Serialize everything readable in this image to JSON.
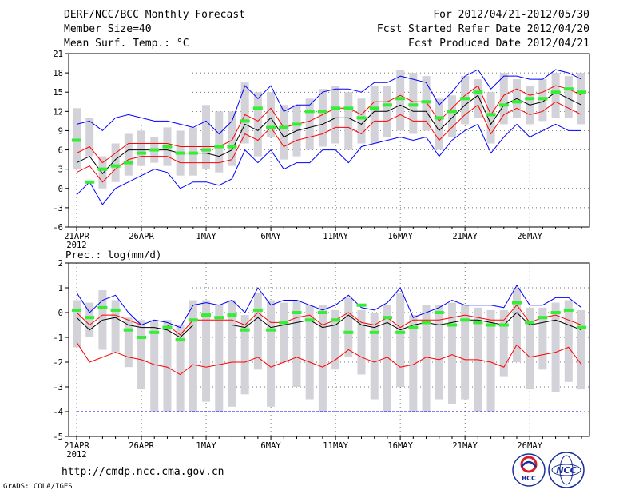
{
  "header": {
    "title": "DERF/NCC/BCC Monthly Forecast",
    "member_size": "Member Size=40",
    "variable": "Mean Surf. Temp.: °C",
    "period": "For 2012/04/21-2012/05/30",
    "refer_date": "Fcst Started Refer Date 2012/04/20",
    "produced_date": "Fcst Produced Date 2012/04/21"
  },
  "footer": {
    "url": "http://cmdp.ncc.cma.gov.cn",
    "credit": "GrADS: COLA/IGES",
    "logo1_text": "BCC",
    "logo2_text": "NCC"
  },
  "chart_data": [
    {
      "type": "line",
      "title": "Mean Surf. Temp.: °C",
      "days": 40,
      "x_tick_labels": [
        "21APR",
        "26APR",
        "1MAY",
        "6MAY",
        "11MAY",
        "16MAY",
        "21MAY",
        "26MAY"
      ],
      "year_label": "2012",
      "ylim": [
        -6,
        21
      ],
      "y_ticks": [
        -6,
        -3,
        0,
        3,
        6,
        9,
        12,
        15,
        18,
        21
      ],
      "grid": true,
      "colors": {
        "mean": "#000000",
        "band": "#ff0000",
        "range": "#0000ff",
        "box": "#d2d2d8",
        "obs": "#33ee33"
      },
      "series": [
        {
          "name": "ensemble mean",
          "values": [
            4,
            5,
            2.3,
            4.5,
            6,
            6,
            6,
            6,
            5.5,
            5.5,
            5.5,
            5,
            6,
            10,
            9,
            11,
            8,
            9,
            9.5,
            10,
            11,
            11,
            10,
            12,
            12,
            13,
            12,
            12,
            9,
            11,
            13,
            14.5,
            10,
            13,
            14,
            13,
            13.5,
            15,
            14,
            13
          ]
        },
        {
          "name": "upper band",
          "values": [
            5.5,
            6.5,
            4,
            5.5,
            7,
            7,
            7,
            7,
            6.5,
            6.5,
            6.5,
            6.5,
            7.5,
            11.5,
            10.5,
            12.5,
            9.5,
            10,
            10.5,
            11.5,
            12.5,
            12.5,
            11.5,
            13.5,
            13.5,
            14.5,
            13.5,
            13.5,
            10.5,
            12.5,
            14.5,
            16,
            11.5,
            14.5,
            15.5,
            14.5,
            15,
            16,
            15.5,
            14.5
          ]
        },
        {
          "name": "lower band",
          "values": [
            2.5,
            3.5,
            1,
            3,
            4.5,
            5,
            5,
            5,
            4,
            4,
            4,
            4,
            4.5,
            8.5,
            7.5,
            9.5,
            6.5,
            7.5,
            8,
            8.5,
            9.5,
            9.5,
            8.5,
            10.5,
            10.5,
            11.5,
            10.5,
            10.5,
            7.5,
            9.5,
            11.5,
            13,
            8.5,
            11.5,
            12.5,
            11.5,
            12,
            13.5,
            12.5,
            11.5
          ]
        },
        {
          "name": "ensemble max",
          "values": [
            10,
            10.5,
            9,
            11,
            11.5,
            11,
            10.5,
            10.5,
            10,
            9.5,
            10.5,
            8.5,
            10.5,
            16,
            14,
            16,
            12,
            13,
            13,
            15,
            15.5,
            15.5,
            15,
            16.5,
            16.5,
            17.5,
            17,
            16.5,
            13,
            15,
            17.5,
            18.5,
            15.5,
            17.5,
            17.5,
            17,
            17,
            18.5,
            18,
            17
          ]
        },
        {
          "name": "ensemble min",
          "values": [
            -1,
            1,
            -2.5,
            0,
            1,
            2,
            3,
            2.5,
            0,
            1,
            1,
            0.5,
            1.5,
            6,
            4,
            6,
            3,
            4,
            4,
            6,
            6,
            4,
            6.5,
            7,
            7.5,
            8,
            7.5,
            8,
            5,
            7.5,
            9,
            10,
            5.5,
            8,
            10,
            8,
            9,
            10,
            9,
            9
          ]
        },
        {
          "name": "observed",
          "values": [
            7.5,
            1,
            3,
            3.5,
            4,
            5.5,
            6,
            6.5,
            5.5,
            5.5,
            6,
            6.5,
            6.5,
            10.5,
            12.5,
            9.5,
            9.5,
            10,
            12,
            12,
            12.5,
            12.5,
            11,
            12.5,
            13,
            14,
            13,
            13.5,
            11,
            12,
            14,
            15,
            11.5,
            13,
            13.5,
            14,
            14,
            15,
            15.5,
            15
          ]
        },
        {
          "name": "box top",
          "values": [
            12.5,
            11,
            5,
            7,
            8.5,
            9,
            8,
            9.5,
            9,
            9.5,
            13,
            12,
            12,
            16.5,
            15,
            15,
            13,
            13,
            14,
            15.5,
            16,
            15,
            14,
            16,
            16,
            18.5,
            18,
            17.5,
            14,
            14.5,
            17.5,
            17,
            15,
            18,
            17,
            16,
            17,
            18,
            17.5,
            18
          ]
        },
        {
          "name": "box bottom",
          "values": [
            3,
            5,
            0,
            1,
            2,
            3.5,
            4,
            3.5,
            2,
            2,
            3,
            2.5,
            3.5,
            7,
            5,
            8,
            4.5,
            5,
            6,
            6.5,
            7,
            6,
            7,
            7,
            8,
            9,
            8.5,
            9,
            6,
            8,
            10,
            11,
            7,
            10,
            11,
            10,
            10.5,
            11,
            11,
            10
          ]
        }
      ]
    },
    {
      "type": "line",
      "title": "Prec.: log(mm/d)",
      "days": 40,
      "x_tick_labels": [
        "21APR",
        "26APR",
        "1MAY",
        "6MAY",
        "11MAY",
        "16MAY",
        "21MAY",
        "26MAY"
      ],
      "year_label": "2012",
      "ylim": [
        -5,
        2
      ],
      "y_ticks": [
        -5,
        -4,
        -3,
        -2,
        -1,
        0,
        1,
        2
      ],
      "grid": true,
      "colors": {
        "mean": "#000000",
        "band": "#ff0000",
        "range": "#0000ff",
        "box": "#d2d2d8",
        "obs": "#33ee33"
      },
      "series": [
        {
          "name": "ensemble mean",
          "values": [
            -0.2,
            -0.7,
            -0.3,
            -0.2,
            -0.5,
            -0.6,
            -0.6,
            -0.7,
            -1,
            -0.5,
            -0.5,
            -0.5,
            -0.5,
            -0.6,
            -0.2,
            -0.6,
            -0.5,
            -0.4,
            -0.3,
            -0.6,
            -0.5,
            -0.1,
            -0.5,
            -0.6,
            -0.4,
            -0.7,
            -0.5,
            -0.4,
            -0.5,
            -0.4,
            -0.3,
            -0.3,
            -0.4,
            -0.5,
            0,
            -0.5,
            -0.4,
            -0.3,
            -0.5,
            -0.7
          ]
        },
        {
          "name": "upper band",
          "values": [
            0,
            -0.5,
            -0.1,
            -0.1,
            -0.3,
            -0.5,
            -0.5,
            -0.5,
            -0.9,
            -0.3,
            -0.3,
            -0.3,
            -0.3,
            -0.5,
            0,
            -0.4,
            -0.4,
            -0.2,
            -0.1,
            -0.5,
            -0.3,
            0,
            -0.4,
            -0.5,
            -0.2,
            -0.6,
            -0.3,
            -0.3,
            -0.3,
            -0.2,
            -0.1,
            -0.2,
            -0.3,
            -0.3,
            0.3,
            -0.4,
            -0.2,
            -0.1,
            -0.3,
            -0.5
          ]
        },
        {
          "name": "ensemble low",
          "values": [
            -1.2,
            -2,
            -1.8,
            -1.6,
            -1.8,
            -1.9,
            -2.1,
            -2.2,
            -2.5,
            -2.1,
            -2.2,
            -2.1,
            -2,
            -2,
            -1.8,
            -2.2,
            -2,
            -1.8,
            -2,
            -2.2,
            -1.9,
            -1.5,
            -1.8,
            -2,
            -1.8,
            -2.2,
            -2.1,
            -1.8,
            -1.9,
            -1.7,
            -1.9,
            -1.9,
            -2,
            -2.2,
            -1.3,
            -1.8,
            -1.7,
            -1.6,
            -1.4,
            -2.1
          ]
        },
        {
          "name": "ensemble max",
          "values": [
            0.8,
            0,
            0.5,
            0.7,
            0,
            -0.5,
            -0.3,
            -0.4,
            -0.6,
            0.3,
            0.4,
            0.3,
            0.5,
            0,
            1,
            0.3,
            0.5,
            0.5,
            0.3,
            0.1,
            0.3,
            0.7,
            0.2,
            0.1,
            0.4,
            1,
            -0.2,
            0,
            0.2,
            0.5,
            0.3,
            0.3,
            0.3,
            0.2,
            1.1,
            0.3,
            0.3,
            0.6,
            0.6,
            0.2
          ]
        },
        {
          "name": "floor",
          "values": [
            -4,
            -4,
            -4,
            -4,
            -4,
            -4,
            -4,
            -4,
            -4,
            -4,
            -4,
            -4,
            -4,
            -4,
            -4,
            -4,
            -4,
            -4,
            -4,
            -4,
            -4,
            -4,
            -4,
            -4,
            -4,
            -4,
            -4,
            -4,
            -4,
            -4,
            -4,
            -4,
            -4,
            -4,
            -4,
            -4,
            -4,
            -4,
            -4,
            -4
          ]
        },
        {
          "name": "observed",
          "values": [
            0.1,
            -0.2,
            0.2,
            0.1,
            -0.7,
            -1,
            -0.8,
            -0.6,
            -1.1,
            -0.3,
            -0.1,
            -0.2,
            -0.1,
            -0.7,
            0.1,
            -0.7,
            -0.4,
            0,
            -0.3,
            0,
            -0.3,
            -0.8,
            0.3,
            -0.8,
            -0.2,
            -0.8,
            -0.6,
            -0.4,
            0,
            -0.5,
            -0.3,
            -0.4,
            -0.5,
            -0.5,
            0.4,
            -0.4,
            -0.2,
            0,
            0.1,
            -0.6
          ]
        },
        {
          "name": "box top",
          "values": [
            0.5,
            0.4,
            0.9,
            0.5,
            -0.2,
            -0.3,
            -0.3,
            -0.3,
            -0.5,
            0.5,
            0.5,
            0.3,
            0.5,
            -0.1,
            0.8,
            0.5,
            0.4,
            0.5,
            0.3,
            0.3,
            0.1,
            0.6,
            0.1,
            0,
            0.3,
            0.8,
            -0.1,
            0.3,
            0.3,
            0.4,
            0.3,
            0.2,
            0.1,
            0.1,
            1,
            0.2,
            0.2,
            0.4,
            0.5,
            0.1
          ]
        },
        {
          "name": "box bottom",
          "values": [
            -1.4,
            -1,
            -1.5,
            -1.6,
            -2.2,
            -3.1,
            -4,
            -4,
            -4,
            -4,
            -3.6,
            -4,
            -3.8,
            -3.3,
            -2.3,
            -3.8,
            -2,
            -3,
            -3.5,
            -4,
            -2.3,
            -1.8,
            -2.5,
            -3.5,
            -4,
            -3,
            -4,
            -4,
            -3.5,
            -3.7,
            -3.5,
            -4,
            -4,
            -2.6,
            -2,
            -3.1,
            -2.3,
            -3.2,
            -2.8,
            -3.1
          ]
        }
      ]
    }
  ]
}
